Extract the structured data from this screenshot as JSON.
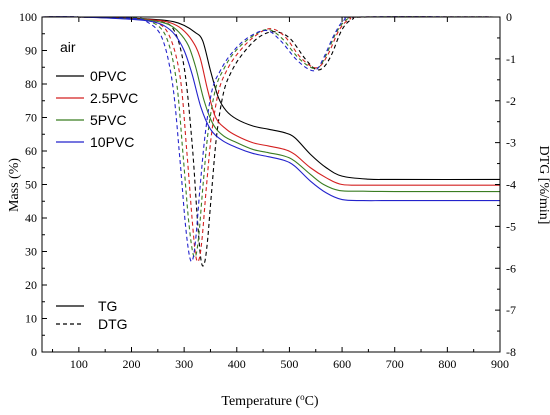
{
  "chart_data": {
    "type": "line",
    "xlabel_main": "Temperature (",
    "xlabel_sup": "o",
    "xlabel_end": "C)",
    "ylabel": "Mass (%)",
    "y2label": "DTG [%/min]",
    "xlim": [
      30,
      900
    ],
    "ylim": [
      0,
      100
    ],
    "y2lim": [
      -8,
      0
    ],
    "xticks": [
      100,
      200,
      300,
      400,
      500,
      600,
      700,
      800,
      900
    ],
    "yticks": [
      0,
      10,
      20,
      30,
      40,
      50,
      60,
      70,
      80,
      90,
      100
    ],
    "y2ticks": [
      0,
      -1,
      -2,
      -3,
      -4,
      -5,
      -6,
      -7,
      -8
    ],
    "annotation": "air",
    "style_legend": [
      {
        "label": "TG",
        "dash": "solid"
      },
      {
        "label": "DTG",
        "dash": "dashed"
      }
    ],
    "series": [
      {
        "name": "0PVC",
        "color": "#000000",
        "tg": [
          [
            30,
            100
          ],
          [
            100,
            100
          ],
          [
            200,
            99.6
          ],
          [
            250,
            99.2
          ],
          [
            280,
            98.6
          ],
          [
            300,
            97.5
          ],
          [
            320,
            95.5
          ],
          [
            335,
            93
          ],
          [
            350,
            84
          ],
          [
            365,
            76
          ],
          [
            380,
            72
          ],
          [
            400,
            69.5
          ],
          [
            430,
            67.5
          ],
          [
            460,
            66.5
          ],
          [
            490,
            65.5
          ],
          [
            510,
            64
          ],
          [
            540,
            59
          ],
          [
            570,
            55
          ],
          [
            600,
            52.5
          ],
          [
            650,
            51.6
          ],
          [
            700,
            51.5
          ],
          [
            900,
            51.5
          ]
        ],
        "dtg": [
          [
            30,
            0
          ],
          [
            100,
            0
          ],
          [
            200,
            -0.02
          ],
          [
            250,
            -0.1
          ],
          [
            280,
            -0.3
          ],
          [
            300,
            -1.2
          ],
          [
            315,
            -3
          ],
          [
            325,
            -4.8
          ],
          [
            332,
            -5.8
          ],
          [
            338,
            -5.9
          ],
          [
            344,
            -5.4
          ],
          [
            352,
            -4.2
          ],
          [
            362,
            -2.8
          ],
          [
            375,
            -1.8
          ],
          [
            390,
            -1.3
          ],
          [
            410,
            -0.9
          ],
          [
            440,
            -0.5
          ],
          [
            470,
            -0.35
          ],
          [
            500,
            -0.5
          ],
          [
            530,
            -1.0
          ],
          [
            550,
            -1.25
          ],
          [
            565,
            -1.2
          ],
          [
            580,
            -0.9
          ],
          [
            600,
            -0.3
          ],
          [
            620,
            -0.05
          ],
          [
            650,
            0
          ],
          [
            900,
            0
          ]
        ]
      },
      {
        "name": "2.5PVC",
        "color": "#d42020",
        "tg": [
          [
            30,
            100
          ],
          [
            100,
            100
          ],
          [
            200,
            99.5
          ],
          [
            250,
            99
          ],
          [
            275,
            98.2
          ],
          [
            295,
            96.5
          ],
          [
            315,
            93
          ],
          [
            330,
            88
          ],
          [
            345,
            78
          ],
          [
            360,
            70
          ],
          [
            380,
            66.5
          ],
          [
            400,
            64.5
          ],
          [
            430,
            62.5
          ],
          [
            460,
            61.5
          ],
          [
            490,
            60.5
          ],
          [
            510,
            59
          ],
          [
            540,
            55
          ],
          [
            570,
            52
          ],
          [
            600,
            50
          ],
          [
            650,
            49.8
          ],
          [
            700,
            49.8
          ],
          [
            900,
            49.8
          ]
        ],
        "dtg": [
          [
            30,
            0
          ],
          [
            100,
            0
          ],
          [
            200,
            -0.02
          ],
          [
            240,
            -0.1
          ],
          [
            270,
            -0.4
          ],
          [
            292,
            -1.4
          ],
          [
            305,
            -3.2
          ],
          [
            315,
            -4.8
          ],
          [
            322,
            -5.7
          ],
          [
            328,
            -5.8
          ],
          [
            334,
            -5.3
          ],
          [
            342,
            -4.1
          ],
          [
            352,
            -2.8
          ],
          [
            365,
            -1.8
          ],
          [
            380,
            -1.3
          ],
          [
            400,
            -0.9
          ],
          [
            430,
            -0.5
          ],
          [
            462,
            -0.28
          ],
          [
            490,
            -0.45
          ],
          [
            520,
            -0.95
          ],
          [
            545,
            -1.2
          ],
          [
            560,
            -1.15
          ],
          [
            575,
            -0.85
          ],
          [
            595,
            -0.3
          ],
          [
            615,
            -0.05
          ],
          [
            640,
            0
          ],
          [
            900,
            0
          ]
        ]
      },
      {
        "name": "5PVC",
        "color": "#3a7d22",
        "tg": [
          [
            30,
            100
          ],
          [
            100,
            100
          ],
          [
            200,
            99.4
          ],
          [
            245,
            98.8
          ],
          [
            270,
            97.8
          ],
          [
            290,
            95.5
          ],
          [
            308,
            91.5
          ],
          [
            322,
            85
          ],
          [
            338,
            75
          ],
          [
            355,
            68
          ],
          [
            375,
            64.5
          ],
          [
            400,
            62.5
          ],
          [
            430,
            60.5
          ],
          [
            460,
            59.5
          ],
          [
            490,
            58.5
          ],
          [
            510,
            57
          ],
          [
            540,
            53
          ],
          [
            565,
            50
          ],
          [
            595,
            48.2
          ],
          [
            640,
            48
          ],
          [
            700,
            47.9
          ],
          [
            900,
            47.9
          ]
        ],
        "dtg": [
          [
            30,
            0
          ],
          [
            100,
            0
          ],
          [
            200,
            -0.02
          ],
          [
            235,
            -0.1
          ],
          [
            265,
            -0.45
          ],
          [
            285,
            -1.5
          ],
          [
            298,
            -3.3
          ],
          [
            308,
            -4.8
          ],
          [
            316,
            -5.6
          ],
          [
            322,
            -5.7
          ],
          [
            328,
            -5.2
          ],
          [
            336,
            -4.0
          ],
          [
            346,
            -2.7
          ],
          [
            360,
            -1.7
          ],
          [
            375,
            -1.25
          ],
          [
            395,
            -0.85
          ],
          [
            425,
            -0.5
          ],
          [
            458,
            -0.3
          ],
          [
            485,
            -0.5
          ],
          [
            515,
            -0.95
          ],
          [
            540,
            -1.2
          ],
          [
            556,
            -1.2
          ],
          [
            570,
            -0.9
          ],
          [
            590,
            -0.35
          ],
          [
            610,
            -0.05
          ],
          [
            635,
            0
          ],
          [
            900,
            0
          ]
        ]
      },
      {
        "name": "10PVC",
        "color": "#2323cc",
        "tg": [
          [
            30,
            100
          ],
          [
            100,
            100
          ],
          [
            200,
            99.3
          ],
          [
            240,
            98.6
          ],
          [
            262,
            97.4
          ],
          [
            282,
            94.8
          ],
          [
            300,
            90
          ],
          [
            315,
            83
          ],
          [
            332,
            73
          ],
          [
            350,
            66.5
          ],
          [
            372,
            63.2
          ],
          [
            400,
            61
          ],
          [
            430,
            59.3
          ],
          [
            460,
            58.3
          ],
          [
            490,
            57.2
          ],
          [
            510,
            55.5
          ],
          [
            540,
            51
          ],
          [
            570,
            47.5
          ],
          [
            600,
            45.5
          ],
          [
            640,
            45.2
          ],
          [
            700,
            45.2
          ],
          [
            900,
            45.2
          ]
        ],
        "dtg": [
          [
            30,
            0
          ],
          [
            100,
            0
          ],
          [
            200,
            -0.03
          ],
          [
            230,
            -0.12
          ],
          [
            258,
            -0.5
          ],
          [
            278,
            -1.6
          ],
          [
            292,
            -3.4
          ],
          [
            302,
            -4.9
          ],
          [
            310,
            -5.7
          ],
          [
            316,
            -5.8
          ],
          [
            322,
            -5.3
          ],
          [
            330,
            -4.1
          ],
          [
            340,
            -2.8
          ],
          [
            353,
            -1.75
          ],
          [
            368,
            -1.3
          ],
          [
            388,
            -0.9
          ],
          [
            418,
            -0.52
          ],
          [
            455,
            -0.32
          ],
          [
            482,
            -0.55
          ],
          [
            512,
            -1.0
          ],
          [
            537,
            -1.25
          ],
          [
            552,
            -1.25
          ],
          [
            566,
            -0.95
          ],
          [
            586,
            -0.4
          ],
          [
            605,
            -0.06
          ],
          [
            630,
            0
          ],
          [
            900,
            0
          ]
        ]
      }
    ]
  }
}
